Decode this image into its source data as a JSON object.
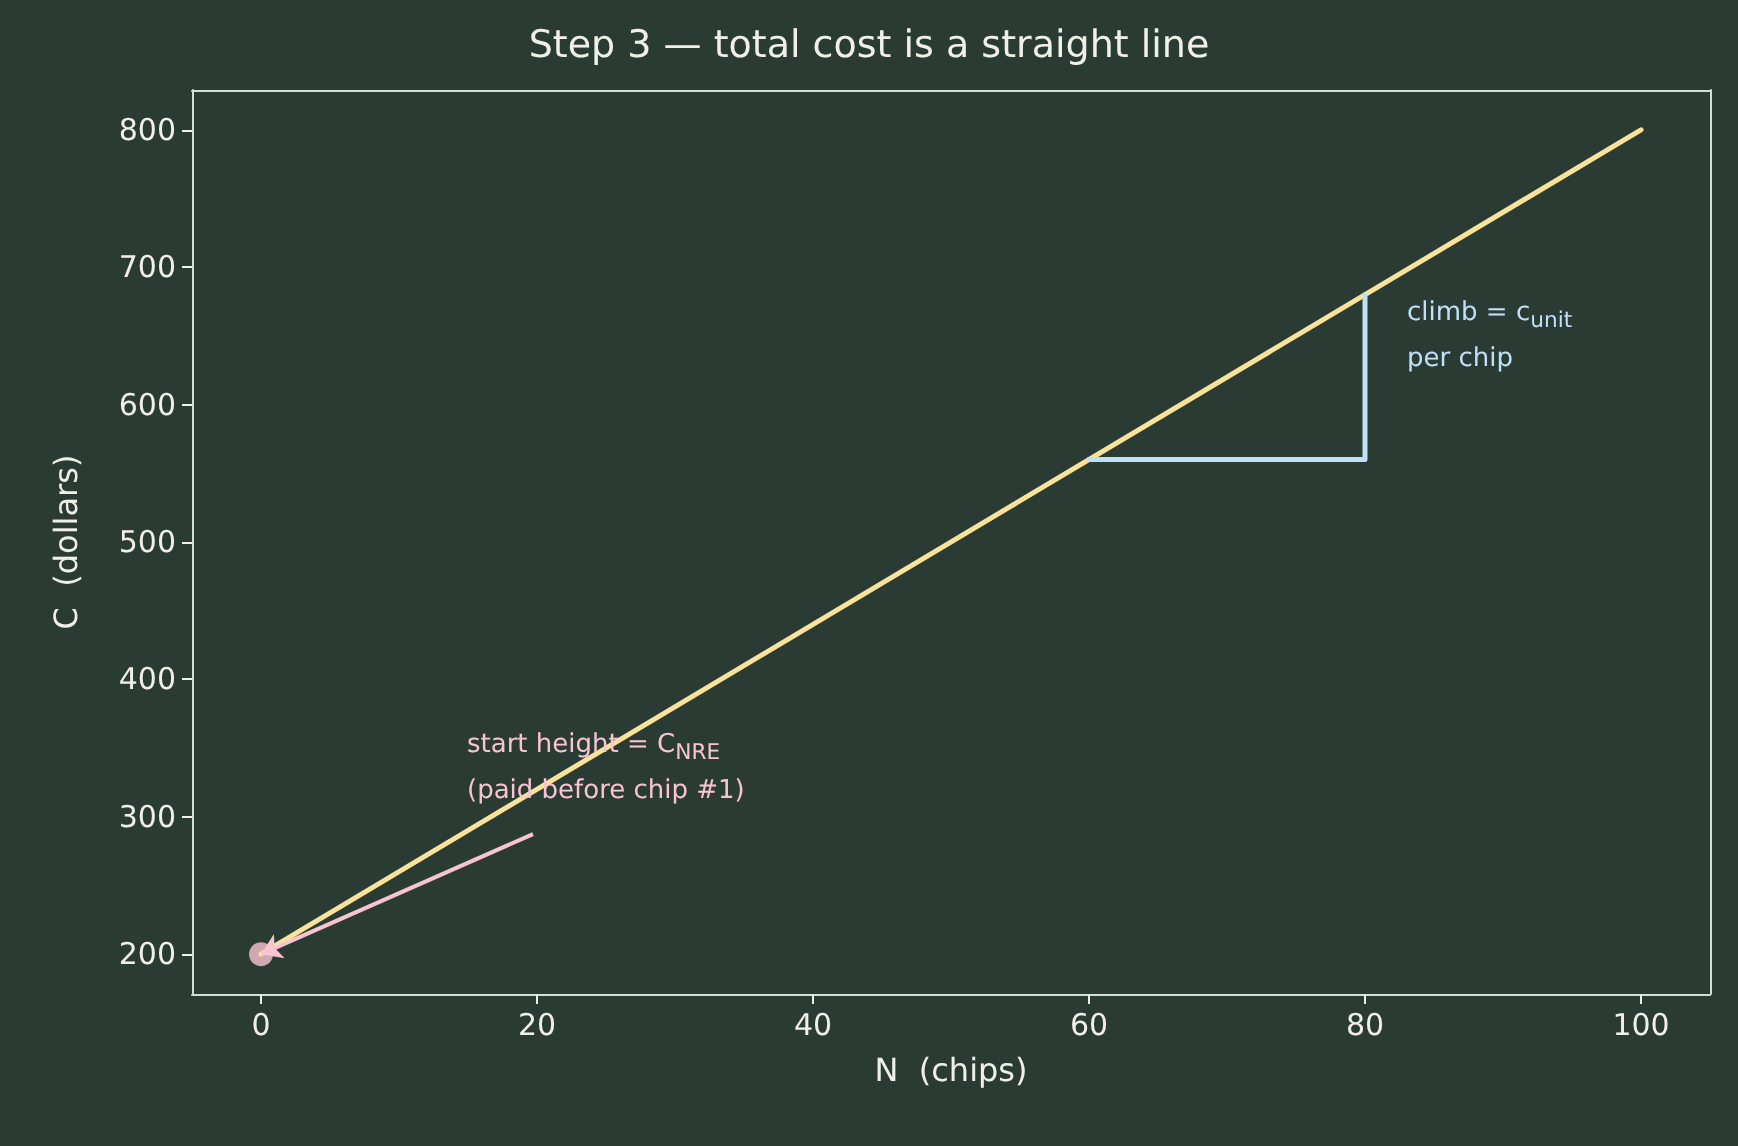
{
  "chart_data": {
    "type": "line",
    "title": "Step 3 — total cost is a straight line",
    "xlabel": "N  (chips)",
    "ylabel": "C  (dollars)",
    "xlim": [
      -5,
      105
    ],
    "ylim": [
      171,
      829
    ],
    "xticks": [
      0,
      20,
      40,
      60,
      80,
      100
    ],
    "yticks": [
      200,
      300,
      400,
      500,
      600,
      700,
      800
    ],
    "grid": false,
    "series": [
      {
        "type": "line",
        "color": "#fbe29a",
        "x": [
          0,
          100
        ],
        "values": [
          200,
          800
        ],
        "marker": "none"
      },
      {
        "type": "scatter",
        "color": "#f9c4d2",
        "x": [
          0
        ],
        "values": [
          200
        ],
        "marker": "circle"
      },
      {
        "type": "line",
        "color": "#bfe0f7",
        "x": [
          60,
          80,
          80
        ],
        "values": [
          560,
          560,
          680
        ],
        "marker": "none"
      }
    ],
    "annotations": [
      {
        "text": "start height = C$_{NRE}$\n(paid before chip #1)",
        "x": 0,
        "y": 200
      },
      "climb = c$_{unit}$\nper chip"
    ]
  }
}
